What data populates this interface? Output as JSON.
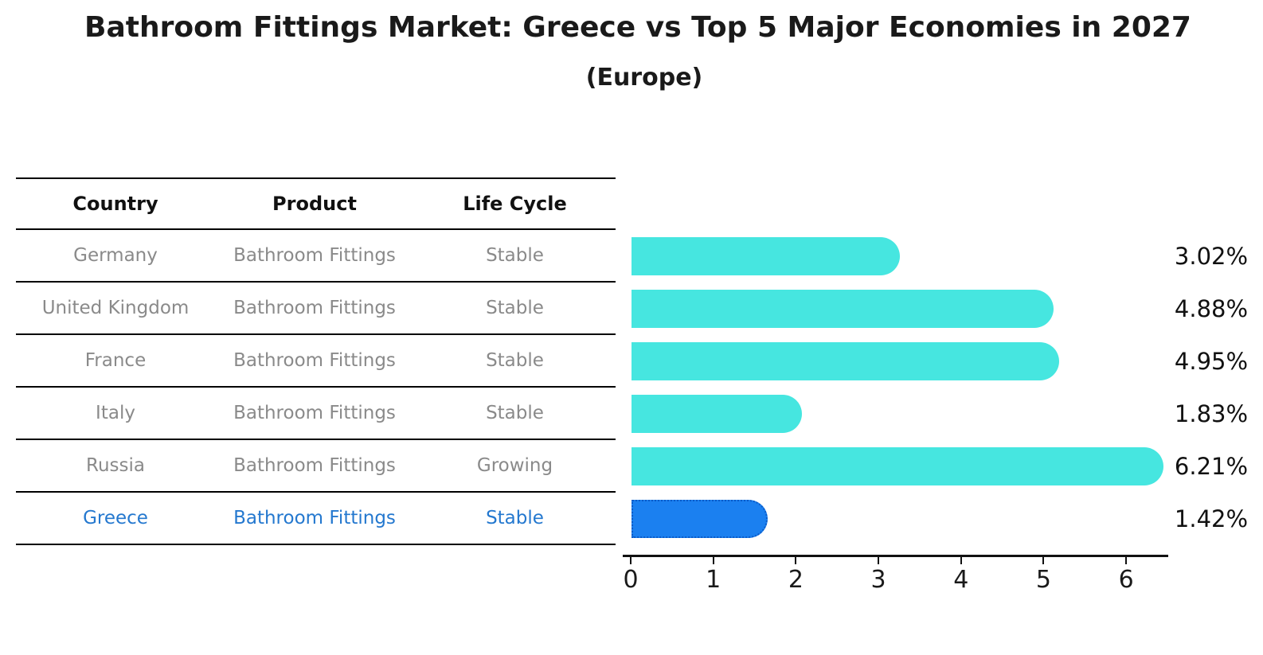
{
  "title": "Bathroom Fittings Market: Greece vs Top 5 Major Economies in 2027",
  "subtitle": "(Europe)",
  "table": {
    "headers": [
      "Country",
      "Product",
      "Life Cycle"
    ],
    "rows": [
      {
        "country": "Germany",
        "product": "Bathroom Fittings",
        "life_cycle": "Stable",
        "highlighted": false
      },
      {
        "country": "United Kingdom",
        "product": "Bathroom Fittings",
        "life_cycle": "Stable",
        "highlighted": false
      },
      {
        "country": "France",
        "product": "Bathroom Fittings",
        "life_cycle": "Stable",
        "highlighted": false
      },
      {
        "country": "Italy",
        "product": "Bathroom Fittings",
        "life_cycle": "Stable",
        "highlighted": false
      },
      {
        "country": "Russia",
        "product": "Bathroom Fittings",
        "life_cycle": "Growing",
        "highlighted": false
      },
      {
        "country": "Greece",
        "product": "Bathroom Fittings",
        "life_cycle": "Stable",
        "highlighted": true
      }
    ]
  },
  "chart_data": {
    "type": "bar",
    "orientation": "horizontal",
    "title": "Bathroom Fittings Market: Greece vs Top 5 Major Economies in 2027",
    "subtitle": "(Europe)",
    "categories": [
      "Germany",
      "United Kingdom",
      "France",
      "Italy",
      "Russia",
      "Greece"
    ],
    "values": [
      3.02,
      4.88,
      4.95,
      1.83,
      6.21,
      1.42
    ],
    "value_labels": [
      "3.02%",
      "4.88%",
      "4.95%",
      "1.83%",
      "6.21%",
      "1.42%"
    ],
    "x_ticks": [
      0,
      1,
      2,
      3,
      4,
      5,
      6
    ],
    "xlim": [
      0,
      6.5
    ],
    "grid": false,
    "legend": false,
    "highlight_index": 5
  },
  "colors": {
    "background": "#ffffff",
    "bar_color": "#46E6E0",
    "highlight_bar_color": "#1B80F0",
    "highlight_bar_border": "#0B5BC8",
    "highlight_text": "#2478CF",
    "row_text": "#8a8a8a",
    "header_text": "#111111",
    "axis": "#111111"
  }
}
